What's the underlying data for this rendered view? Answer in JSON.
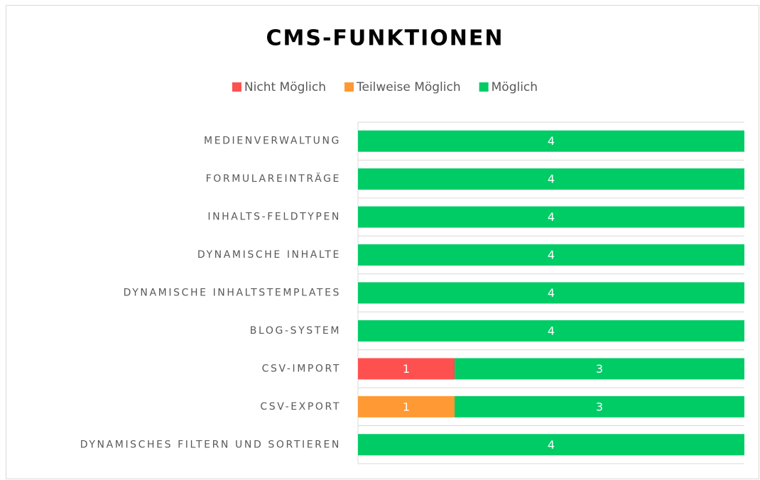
{
  "chart_data": {
    "type": "stacked_bar_horizontal",
    "title": "CMS-FUNKTIONEN",
    "categories": [
      "MEDIENVERWALTUNG",
      "FORMULAREINTRÄGE",
      "INHALTS-FELDTYPEN",
      "DYNAMISCHE INHALTE",
      "DYNAMISCHE INHALTSTEMPLATES",
      "BLOG-SYSTEM",
      "CSV-IMPORT",
      "CSV-EXPORT",
      "DYNAMISCHES FILTERN UND SORTIEREN"
    ],
    "series": [
      {
        "name": "Nicht Möglich",
        "color": "#ff5050",
        "values": [
          0,
          0,
          0,
          0,
          0,
          0,
          1,
          0,
          0
        ]
      },
      {
        "name": "Teilweise Möglich",
        "color": "#ff9933",
        "values": [
          0,
          0,
          0,
          0,
          0,
          0,
          0,
          1,
          0
        ]
      },
      {
        "name": "Möglich",
        "color": "#00cc66",
        "values": [
          4,
          4,
          4,
          4,
          4,
          4,
          3,
          3,
          4
        ]
      }
    ],
    "xlim": [
      0,
      4
    ],
    "grid": true,
    "legend": "top"
  }
}
